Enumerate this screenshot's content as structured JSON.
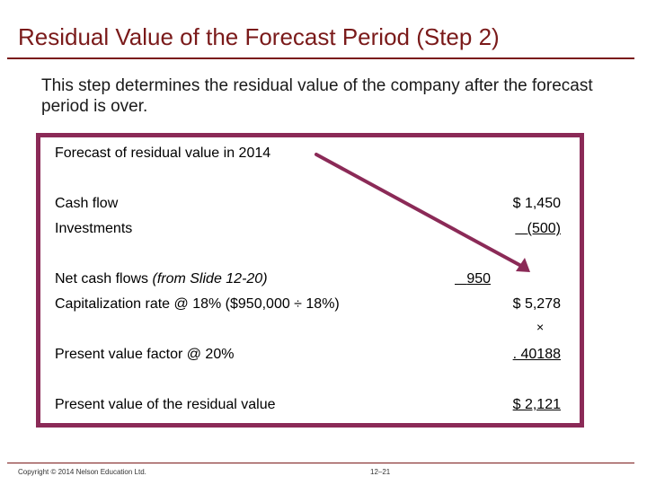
{
  "title": "Residual Value of the Forecast Period (Step 2)",
  "intro": "This step determines the residual value of the company after the forecast period is over.",
  "box": {
    "heading": "Forecast of residual value in 2014",
    "cash_flow": {
      "label": "Cash flow",
      "value": "$ 1,450"
    },
    "investments": {
      "label": "Investments",
      "value": "(500)"
    },
    "net_cash_flows": {
      "label": "Net cash flows ",
      "note": "(from Slide 12-20)",
      "value": "950"
    },
    "capitalization": {
      "label": "Capitalization rate @ 18% ($950,000 ÷ 18%)",
      "value": "$ 5,278"
    },
    "times_symbol": "×",
    "pv_factor": {
      "label": "Present value factor @ 20%",
      "value": ". 40188"
    },
    "pv_residual": {
      "label": "Present value of the residual value",
      "value": "$ 2,121"
    }
  },
  "footer": {
    "copyright": "Copyright © 2014 Nelson Education Ltd.",
    "page": "12–21"
  },
  "colors": {
    "title": "#7a1a1a",
    "box_border": "#8b2a57",
    "arrow": "#8b2a57"
  }
}
